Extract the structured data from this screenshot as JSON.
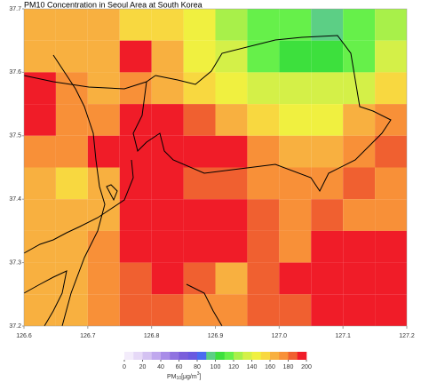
{
  "chart_data": {
    "type": "heatmap",
    "title": "PM10 Concentration in Seoul Area at South Korea",
    "x_edges": [
      126.6,
      126.65,
      126.7,
      126.75,
      126.8,
      126.85,
      126.9,
      126.95,
      127.0,
      127.05,
      127.1,
      127.15,
      127.2
    ],
    "y_edges": [
      37.7,
      37.65,
      37.6,
      37.55,
      37.5,
      37.45,
      37.4,
      37.35,
      37.3,
      37.25,
      37.2
    ],
    "values": [
      [
        160,
        160,
        160,
        150,
        150,
        140,
        120,
        110,
        110,
        95,
        110,
        120
      ],
      [
        160,
        160,
        160,
        190,
        160,
        140,
        130,
        110,
        100,
        100,
        110,
        130
      ],
      [
        200,
        170,
        160,
        170,
        160,
        150,
        140,
        130,
        130,
        130,
        130,
        150
      ],
      [
        190,
        170,
        170,
        200,
        200,
        180,
        160,
        150,
        140,
        140,
        160,
        170
      ],
      [
        170,
        170,
        190,
        200,
        200,
        200,
        190,
        170,
        160,
        160,
        170,
        180
      ],
      [
        160,
        150,
        160,
        200,
        200,
        180,
        180,
        170,
        170,
        170,
        180,
        170
      ],
      [
        160,
        160,
        160,
        200,
        200,
        200,
        190,
        180,
        170,
        180,
        170,
        170
      ],
      [
        160,
        160,
        170,
        190,
        200,
        200,
        190,
        180,
        170,
        190,
        200,
        190
      ],
      [
        160,
        160,
        170,
        180,
        190,
        180,
        160,
        180,
        190,
        200,
        200,
        200
      ],
      [
        160,
        160,
        170,
        180,
        180,
        170,
        170,
        180,
        180,
        190,
        200,
        200
      ]
    ],
    "xlim": [
      126.6,
      127.2
    ],
    "ylim": [
      37.2,
      37.7
    ],
    "xticks": [
      126.6,
      126.7,
      126.8,
      126.9,
      {
        "value": 127,
        "label": "127.0"
      },
      127.1,
      127.2
    ],
    "yticks": [
      37.2,
      37.3,
      37.4,
      37.5,
      37.6,
      37.7
    ],
    "colorbar": {
      "lim": [
        0,
        200
      ],
      "ticks": [
        0,
        20,
        40,
        60,
        80,
        100,
        120,
        140,
        160,
        180,
        200
      ],
      "colors": [
        "#f3ecfb",
        "#e6d9f7",
        "#d4c2f2",
        "#c0a8ee",
        "#a88ce8",
        "#9073e0",
        "#7a5edb",
        "#6a5ae0",
        "#4a6cf0",
        "#5ccf85",
        "#3de03d",
        "#66f04a",
        "#a8f04a",
        "#d4f048",
        "#f0f040",
        "#f8d840",
        "#f8b040",
        "#f89038",
        "#f06030",
        "#f01c28"
      ],
      "label": {
        "base": "PM",
        "sub": "10",
        "unit": "[μg/m",
        "sup": "3",
        "close": "]"
      }
    }
  }
}
